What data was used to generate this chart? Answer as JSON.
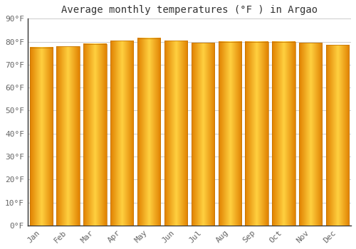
{
  "title": "Average monthly temperatures (°F ) in Argao",
  "months": [
    "Jan",
    "Feb",
    "Mar",
    "Apr",
    "May",
    "Jun",
    "Jul",
    "Aug",
    "Sep",
    "Oct",
    "Nov",
    "Dec"
  ],
  "values": [
    77.5,
    78.0,
    79.0,
    80.5,
    81.5,
    80.5,
    79.5,
    80.0,
    80.0,
    80.0,
    79.5,
    78.5
  ],
  "bar_color_edge": "#E08000",
  "bar_color_center": "#FFD040",
  "background_color": "#FFFFFF",
  "grid_color": "#CCCCCC",
  "spine_color": "#333333",
  "ylim": [
    0,
    90
  ],
  "yticks": [
    0,
    10,
    20,
    30,
    40,
    50,
    60,
    70,
    80,
    90
  ],
  "ytick_labels": [
    "0°F",
    "10°F",
    "20°F",
    "30°F",
    "40°F",
    "50°F",
    "60°F",
    "70°F",
    "80°F",
    "90°F"
  ],
  "title_fontsize": 10,
  "tick_fontsize": 8,
  "title_color": "#333333",
  "tick_color": "#666666",
  "bar_width": 0.85
}
